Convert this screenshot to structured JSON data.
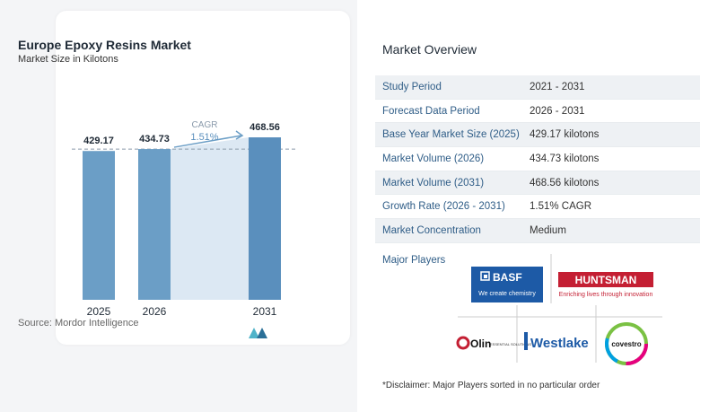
{
  "chart_data": {
    "type": "bar",
    "title": "Europe Epoxy Resins Market",
    "subtitle": "Market Size in Kilotons",
    "categories": [
      "2025",
      "2026",
      "2031"
    ],
    "values": [
      429.17,
      434.73,
      468.56
    ],
    "value_labels": [
      "429.17",
      "434.73",
      "468.56"
    ],
    "cagr_label": "CAGR",
    "cagr_value": "1.51%",
    "reference_line_value": 434.73,
    "colors": {
      "bar": "#6b9ec6",
      "bar_last": "#5a8fbd",
      "area": "#dce8f3",
      "arrow": "#6b9ec6"
    }
  },
  "source": "Source:  Mordor Intelligence",
  "overview": {
    "title": "Market Overview",
    "rows": [
      {
        "key": "Study Period",
        "value": "2021 - 2031"
      },
      {
        "key": "Forecast Data Period",
        "value": "2026 - 2031"
      },
      {
        "key": "Base Year Market Size (2025)",
        "value": "429.17 kilotons"
      },
      {
        "key": "Market Volume (2026)",
        "value": "434.73 kilotons"
      },
      {
        "key": "Market Volume (2031)",
        "value": "468.56 kilotons"
      },
      {
        "key": "Growth Rate (2026 - 2031)",
        "value": "1.51% CAGR"
      },
      {
        "key": "Market Concentration",
        "value": "Medium"
      }
    ],
    "players_title": "Major Players",
    "players": [
      {
        "name": "BASF",
        "tagline": "We create chemistry"
      },
      {
        "name": "HUNTSMAN",
        "tagline": "Enriching lives through innovation"
      },
      {
        "name": "Olin",
        "tagline": "ESSENTIAL SOLUTIONS"
      },
      {
        "name": "Westlake",
        "tagline": ""
      },
      {
        "name": "covestro",
        "tagline": ""
      }
    ],
    "disclaimer": "*Disclaimer: Major Players sorted in no particular order"
  }
}
